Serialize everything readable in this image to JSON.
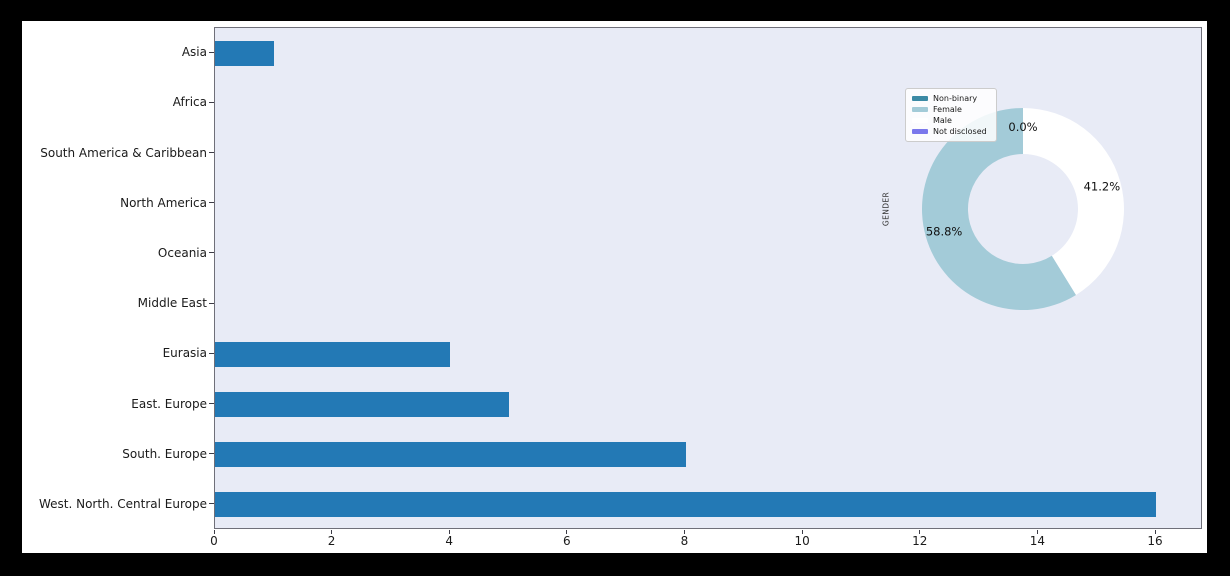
{
  "figure": {
    "background": "#ffffff",
    "outer_background": "#000000"
  },
  "chart_data": [
    {
      "type": "bar",
      "orientation": "horizontal",
      "title": "",
      "xlabel": "",
      "ylabel": "",
      "categories": [
        "Asia",
        "Africa",
        "South America & Caribbean",
        "North America",
        "Oceania",
        "Middle East",
        "Eurasia",
        "East. Europe",
        "South. Europe",
        "West. North. Central Europe"
      ],
      "values": [
        1,
        0,
        0,
        0,
        0,
        0,
        4,
        5,
        8,
        16
      ],
      "xticks": [
        0,
        2,
        4,
        6,
        8,
        10,
        12,
        14,
        16
      ],
      "xlim": [
        0,
        16.8
      ],
      "grid": false,
      "bar_color": "#2379b5",
      "plot_background": "#e8ebf6",
      "legend_position": "none"
    },
    {
      "type": "pie",
      "donut": true,
      "axis_label": "GENDER",
      "start_angle": 90,
      "direction": "counterclockwise",
      "slices": [
        {
          "label": "Non-binary",
          "value": 0.0,
          "pct_label": "0.0%",
          "color": "#3b8aa5"
        },
        {
          "label": "Female",
          "value": 58.8,
          "pct_label": "58.8%",
          "color": "#a3cbd8"
        },
        {
          "label": "Male",
          "value": 41.2,
          "pct_label": "41.2%",
          "color": "#ffffff"
        },
        {
          "label": "Not disclosed",
          "value": 0.0,
          "pct_label": "0.0%",
          "color": "#7b78ec"
        }
      ],
      "legend_position": "upper left"
    }
  ]
}
